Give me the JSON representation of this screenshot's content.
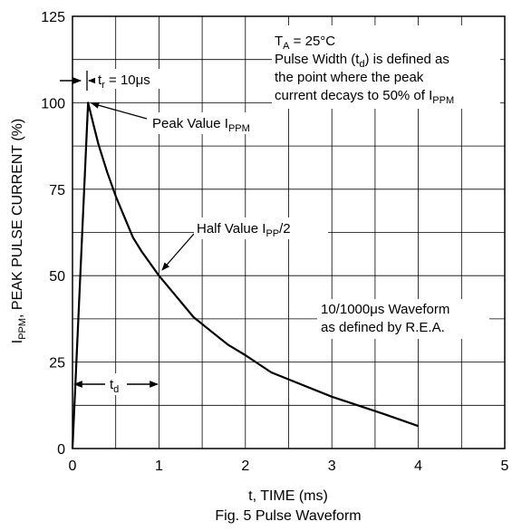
{
  "chart_data": {
    "type": "line",
    "caption": "Fig. 5 Pulse Waveform",
    "xlabel": "t, TIME (ms)",
    "ylabel": {
      "main": "I",
      "sub": "PPM",
      "rest": ", PEAK PULSE CURRENT (%)"
    },
    "xlim": [
      0,
      5
    ],
    "ylim": [
      0,
      125
    ],
    "x_ticks": [
      "0",
      "1",
      "2",
      "3",
      "4",
      "5"
    ],
    "y_ticks": [
      "0",
      "25",
      "50",
      "75",
      "100",
      "125"
    ],
    "grid": true,
    "series": [
      {
        "x": [
          0,
          0.18,
          0.25,
          0.3,
          0.4,
          0.5,
          0.6,
          0.7,
          0.8,
          1.0,
          1.2,
          1.4,
          1.6,
          1.8,
          2.0,
          2.3,
          2.6,
          3.0,
          3.3,
          3.6,
          4.0
        ],
        "y": [
          0,
          100,
          93,
          88,
          80,
          73,
          67,
          61,
          57,
          50,
          44,
          38,
          34,
          30,
          27,
          22,
          19,
          15,
          12.5,
          10,
          6.5
        ]
      }
    ],
    "annotations": {
      "ta": {
        "main": "T",
        "sub": "A",
        "rest": " = 25°C"
      },
      "pw1": {
        "pre": "Pulse Width (t",
        "sub": "d",
        "post": ") is defined as"
      },
      "pw2": "the point where the peak",
      "pw3": {
        "pre": "current decays to 50% of I",
        "sub": "PPM"
      },
      "tr": {
        "main": "t",
        "sub": "r",
        "rest": " = 10μs"
      },
      "peak": {
        "pre": "Peak Value I",
        "sub": "PPM"
      },
      "half": {
        "pre": "Half Value I",
        "sub": "PP",
        "post": "/2"
      },
      "wave1": "10/1000μs Waveform",
      "wave2": "as defined by R.E.A.",
      "td": {
        "main": "t",
        "sub": "d"
      }
    }
  }
}
